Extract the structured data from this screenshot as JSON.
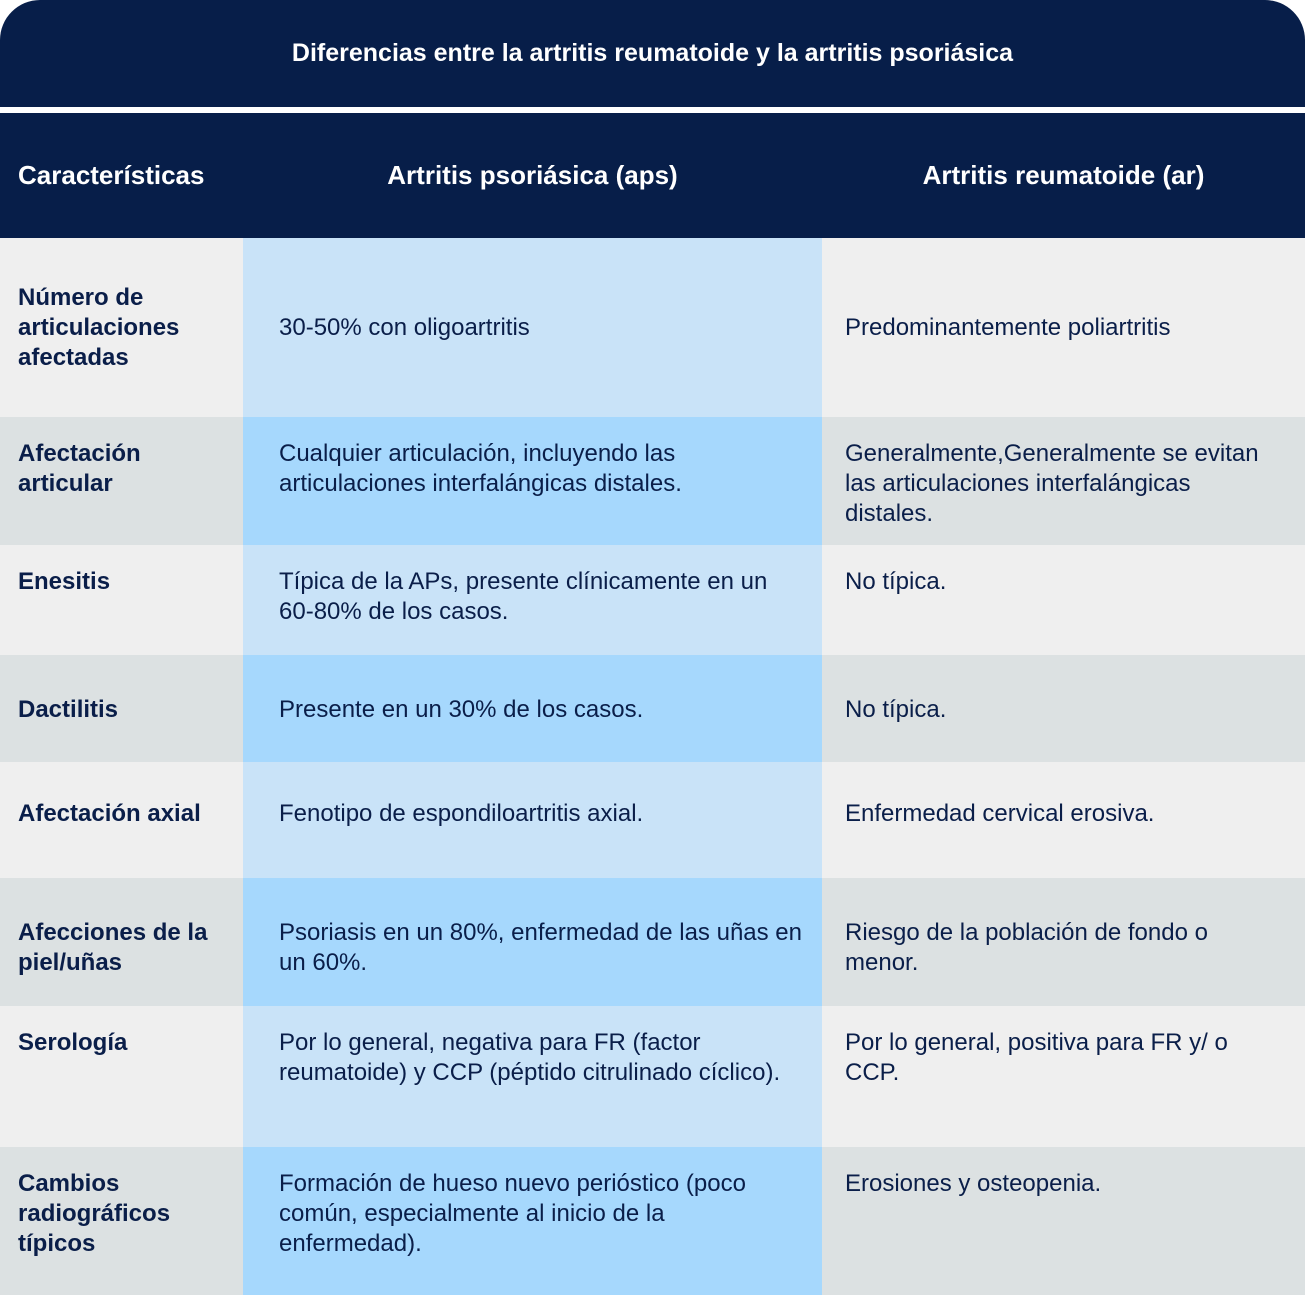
{
  "title": "Diferencias entre la artritis reumatoide y la artritis psoriásica",
  "headers": [
    "Características",
    "Artritis psoriásica (aps)",
    "Artritis reumatoide (ar)"
  ],
  "rows": [
    {
      "feature": "Número de articulaciones afectadas",
      "aps": "30-50% con oligoartritis",
      "ar": "Predominantemente poliartritis"
    },
    {
      "feature": "Afectación articular",
      "aps": "Cualquier articulación, incluyendo las articulaciones interfalángicas distales.",
      "ar": "Generalmente,Generalmente se evitan las articulaciones interfalángicas distales."
    },
    {
      "feature": "Enesitis",
      "aps": "Típica de la APs, presente clínicamente en un 60-80% de los casos.",
      "ar": "No típica."
    },
    {
      "feature": "Dactilitis",
      "aps": "Presente en un 30% de los casos.",
      "ar": "No típica."
    },
    {
      "feature": "Afectación axial",
      "aps": "Fenotipo de espondiloartritis axial.",
      "ar": "Enfermedad cervical erosiva."
    },
    {
      "feature": "Afecciones de la piel/uñas",
      "aps": "Psoriasis en un 80%, enfermedad de las uñas en un 60%.",
      "ar": "Riesgo de la población de fondo o menor."
    },
    {
      "feature": "Serología",
      "aps": "Por lo general, negativa para FR (factor reumatoide) y CCP (péptido citrulinado cíclico).",
      "ar": "Por lo general, positiva para FR y/ o CCP."
    },
    {
      "feature": "Cambios radiográficos típicos",
      "aps": "Formación de hueso nuevo perióstico (poco común, especialmente al inicio de la enfermedad).",
      "ar": "Erosiones y osteopenia."
    }
  ]
}
